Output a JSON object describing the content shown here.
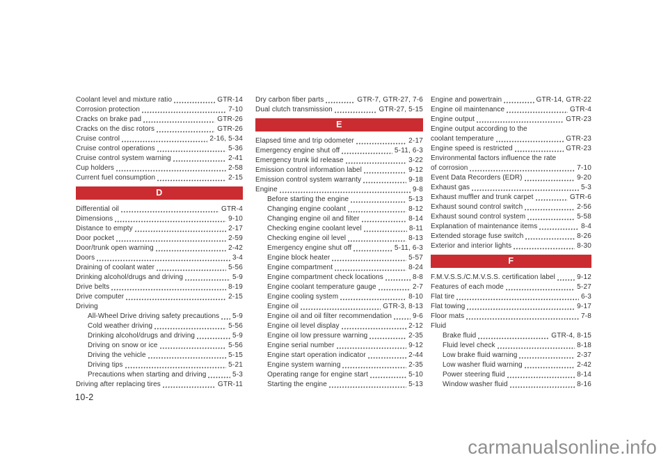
{
  "page": {
    "number": "10-2",
    "watermark": "carmanualsonline.info"
  },
  "colors": {
    "section_header_red": "#cb2c31",
    "section_header_text": "#ffffff",
    "body_text": "#333333",
    "watermark_gray": "#8f8f8f"
  },
  "columns": [
    {
      "items": [
        {
          "t": "e",
          "label": "Coolant level and mixture ratio",
          "page": "GTR-14"
        },
        {
          "t": "e",
          "label": "Corrosion protection",
          "page": "7-10"
        },
        {
          "t": "e",
          "label": "Cracks on brake pad",
          "page": "GTR-26"
        },
        {
          "t": "e",
          "label": "Cracks on the disc rotors",
          "page": "GTR-26"
        },
        {
          "t": "e",
          "label": "Cruise control",
          "page": "2-16, 5-34"
        },
        {
          "t": "e",
          "label": "Cruise control operations",
          "page": "5-36"
        },
        {
          "t": "e",
          "label": "Cruise control system warning",
          "page": "2-41"
        },
        {
          "t": "e",
          "label": "Cup holders",
          "page": "2-58"
        },
        {
          "t": "e",
          "label": "Current fuel consumption",
          "page": "2-15"
        },
        {
          "t": "h",
          "label": "D"
        },
        {
          "t": "e",
          "label": "Differential oil",
          "page": "GTR-4"
        },
        {
          "t": "e",
          "label": "Dimensions",
          "page": "9-10"
        },
        {
          "t": "e",
          "label": "Distance to empty",
          "page": "2-17"
        },
        {
          "t": "e",
          "label": "Door pocket",
          "page": "2-59"
        },
        {
          "t": "e",
          "label": "Door/trunk open warning",
          "page": "2-42"
        },
        {
          "t": "e",
          "label": "Doors",
          "page": "3-4"
        },
        {
          "t": "e",
          "label": "Draining of coolant water",
          "page": "5-56"
        },
        {
          "t": "e",
          "label": "Drinking alcohol/drugs and driving",
          "page": "5-9"
        },
        {
          "t": "e",
          "label": "Drive belts",
          "page": "8-19"
        },
        {
          "t": "e",
          "label": "Drive computer",
          "page": "2-15"
        },
        {
          "t": "g",
          "label": "Driving"
        },
        {
          "t": "e",
          "indent": 1,
          "label": "All-Wheel Drive driving safety precautions",
          "page": "5-9"
        },
        {
          "t": "e",
          "indent": 1,
          "label": "Cold weather driving",
          "page": "5-56"
        },
        {
          "t": "e",
          "indent": 1,
          "label": "Drinking alcohol/drugs and driving",
          "page": "5-9"
        },
        {
          "t": "e",
          "indent": 1,
          "label": "Driving on snow or ice",
          "page": "5-56"
        },
        {
          "t": "e",
          "indent": 1,
          "label": "Driving the vehicle",
          "page": "5-15"
        },
        {
          "t": "e",
          "indent": 1,
          "label": "Driving tips",
          "page": "5-21"
        },
        {
          "t": "e",
          "indent": 1,
          "label": "Precautions when starting and driving",
          "page": "5-3"
        },
        {
          "t": "e",
          "label": "Driving after replacing tires",
          "page": "GTR-11"
        }
      ]
    },
    {
      "items": [
        {
          "t": "e",
          "label": "Dry carbon fiber parts",
          "page": "GTR-7, GTR-27, 7-6"
        },
        {
          "t": "e",
          "label": "Dual clutch transmission",
          "page": "GTR-27, 5-15"
        },
        {
          "t": "h",
          "label": "E"
        },
        {
          "t": "e",
          "label": "Elapsed time and trip odometer",
          "page": "2-17"
        },
        {
          "t": "e",
          "label": "Emergency engine shut off",
          "page": "5-11, 6-3"
        },
        {
          "t": "e",
          "label": "Emergency trunk lid release",
          "page": "3-22"
        },
        {
          "t": "e",
          "label": "Emission control information label",
          "page": "9-12"
        },
        {
          "t": "e",
          "label": "Emission control system warranty",
          "page": "9-18"
        },
        {
          "t": "e",
          "label": "Engine",
          "page": "9-8"
        },
        {
          "t": "e",
          "indent": 1,
          "label": "Before starting the engine",
          "page": "5-13"
        },
        {
          "t": "e",
          "indent": 1,
          "label": "Changing engine coolant",
          "page": "8-12"
        },
        {
          "t": "e",
          "indent": 1,
          "label": "Changing engine oil and filter",
          "page": "8-14"
        },
        {
          "t": "e",
          "indent": 1,
          "label": "Checking engine coolant level",
          "page": "8-11"
        },
        {
          "t": "e",
          "indent": 1,
          "label": "Checking engine oil level",
          "page": "8-13"
        },
        {
          "t": "e",
          "indent": 1,
          "label": "Emergency engine shut off",
          "page": "5-11, 6-3"
        },
        {
          "t": "e",
          "indent": 1,
          "label": "Engine block heater",
          "page": "5-57"
        },
        {
          "t": "e",
          "indent": 1,
          "label": "Engine compartment",
          "page": "8-24"
        },
        {
          "t": "e",
          "indent": 1,
          "label": "Engine compartment check locations",
          "page": "8-8"
        },
        {
          "t": "e",
          "indent": 1,
          "label": "Engine coolant temperature gauge",
          "page": "2-7"
        },
        {
          "t": "e",
          "indent": 1,
          "label": "Engine cooling system",
          "page": "8-10"
        },
        {
          "t": "e",
          "indent": 1,
          "label": "Engine oil",
          "page": "GTR-3, 8-13"
        },
        {
          "t": "e",
          "indent": 1,
          "label": "Engine oil and oil filter recommendation",
          "page": "9-6"
        },
        {
          "t": "e",
          "indent": 1,
          "label": "Engine oil level display",
          "page": "2-12"
        },
        {
          "t": "e",
          "indent": 1,
          "label": "Engine oil low pressure warning",
          "page": "2-35"
        },
        {
          "t": "e",
          "indent": 1,
          "label": "Engine serial number",
          "page": "9-12"
        },
        {
          "t": "e",
          "indent": 1,
          "label": "Engine start operation indicator",
          "page": "2-44"
        },
        {
          "t": "e",
          "indent": 1,
          "label": "Engine system warning",
          "page": "2-35"
        },
        {
          "t": "e",
          "indent": 1,
          "label": "Operating range for engine start",
          "page": "5-10"
        },
        {
          "t": "e",
          "indent": 1,
          "label": "Starting the engine",
          "page": "5-13"
        }
      ]
    },
    {
      "items": [
        {
          "t": "e",
          "label": "Engine and powertrain",
          "page": "GTR-14, GTR-22"
        },
        {
          "t": "e",
          "label": "Engine oil maintenance",
          "page": "GTR-4"
        },
        {
          "t": "e",
          "label": "Engine output",
          "page": "GTR-23"
        },
        {
          "t": "w",
          "label": "Engine output according to the",
          "label2": "coolant temperature",
          "page": "GTR-23"
        },
        {
          "t": "e",
          "label": "Engine speed is restricted",
          "page": "GTR-23"
        },
        {
          "t": "w",
          "label": "Environmental factors influence the rate",
          "label2": "of corrosion",
          "page": "7-10"
        },
        {
          "t": "e",
          "label": "Event Data Recorders (EDR)",
          "page": "9-20"
        },
        {
          "t": "e",
          "label": "Exhaust gas",
          "page": "5-3"
        },
        {
          "t": "e",
          "label": "Exhaust muffler and trunk carpet",
          "page": "GTR-6"
        },
        {
          "t": "e",
          "label": "Exhaust sound control switch",
          "page": "2-56"
        },
        {
          "t": "e",
          "label": "Exhaust sound control system",
          "page": "5-58"
        },
        {
          "t": "e",
          "label": "Explanation of maintenance items",
          "page": "8-4"
        },
        {
          "t": "e",
          "label": "Extended storage fuse switch",
          "page": "8-26"
        },
        {
          "t": "e",
          "label": "Exterior and interior lights",
          "page": "8-30"
        },
        {
          "t": "h",
          "label": "F"
        },
        {
          "t": "e",
          "label": "F.M.V.S.S./C.M.V.S.S. certification label",
          "page": "9-12"
        },
        {
          "t": "e",
          "label": "Features of each mode",
          "page": "5-27"
        },
        {
          "t": "e",
          "label": "Flat tire",
          "page": "6-3"
        },
        {
          "t": "e",
          "label": "Flat towing",
          "page": "9-17"
        },
        {
          "t": "e",
          "label": "Floor mats",
          "page": "7-8"
        },
        {
          "t": "g",
          "label": "Fluid"
        },
        {
          "t": "e",
          "indent": 1,
          "label": "Brake fluid",
          "page": "GTR-4, 8-15"
        },
        {
          "t": "e",
          "indent": 1,
          "label": "Fluid level check",
          "page": "8-18"
        },
        {
          "t": "e",
          "indent": 1,
          "label": "Low brake fluid warning",
          "page": "2-37"
        },
        {
          "t": "e",
          "indent": 1,
          "label": "Low washer fluid warning",
          "page": "2-42"
        },
        {
          "t": "e",
          "indent": 1,
          "label": "Power steering fluid",
          "page": "8-14"
        },
        {
          "t": "e",
          "indent": 1,
          "label": "Window washer fluid",
          "page": "8-16"
        }
      ]
    }
  ]
}
